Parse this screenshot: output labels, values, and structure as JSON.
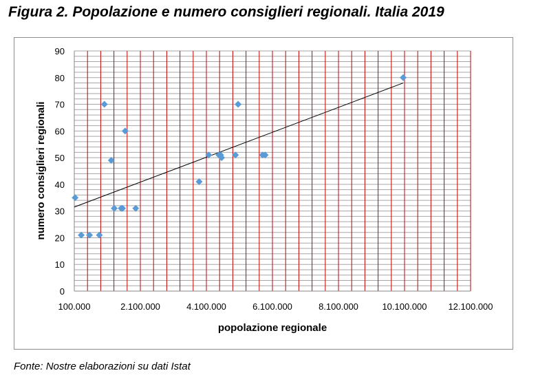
{
  "title": "Figura 2. Popolazione e numero consiglieri regionali. Italia 2019",
  "source": "Fonte: Nostre elaborazioni su dati Istat",
  "colors": {
    "marker": "#5b9bd5",
    "trendline": "#000000",
    "vertical_grid": "#c00000",
    "horizontal_grid": "#a6a6a6"
  },
  "chart_data": {
    "type": "scatter",
    "xlabel": "popolazione regionale",
    "ylabel": "numero consiglieri regionali",
    "xlim": [
      100000,
      12100000
    ],
    "ylim": [
      0,
      90
    ],
    "xticks": [
      "100.000",
      "2.100.000",
      "4.100.000",
      "6.100.000",
      "8.100.000",
      "10.100.000",
      "12.100.000"
    ],
    "yticks": [
      "0",
      "10",
      "20",
      "30",
      "40",
      "50",
      "60",
      "70",
      "80",
      "90"
    ],
    "grid": {
      "horizontal_step": 2,
      "vertical_step": 400000
    },
    "series": [
      {
        "marker": "diamond",
        "points": [
          {
            "x": 125000,
            "y": 35
          },
          {
            "x": 310000,
            "y": 21
          },
          {
            "x": 560000,
            "y": 21
          },
          {
            "x": 860000,
            "y": 21
          },
          {
            "x": 1010000,
            "y": 70
          },
          {
            "x": 1220000,
            "y": 49
          },
          {
            "x": 1310000,
            "y": 31
          },
          {
            "x": 1520000,
            "y": 31
          },
          {
            "x": 1560000,
            "y": 31
          },
          {
            "x": 1640000,
            "y": 60
          },
          {
            "x": 1960000,
            "y": 31
          },
          {
            "x": 3880000,
            "y": 41
          },
          {
            "x": 4170000,
            "y": 51
          },
          {
            "x": 4480000,
            "y": 51
          },
          {
            "x": 4530000,
            "y": 51
          },
          {
            "x": 4560000,
            "y": 50
          },
          {
            "x": 4980000,
            "y": 51
          },
          {
            "x": 5060000,
            "y": 70
          },
          {
            "x": 5800000,
            "y": 51
          },
          {
            "x": 5880000,
            "y": 51
          },
          {
            "x": 10060000,
            "y": 80
          }
        ]
      }
    ],
    "trendline": {
      "type": "linear",
      "x": [
        100000,
        10060000
      ],
      "y": [
        31.5,
        78
      ]
    }
  }
}
